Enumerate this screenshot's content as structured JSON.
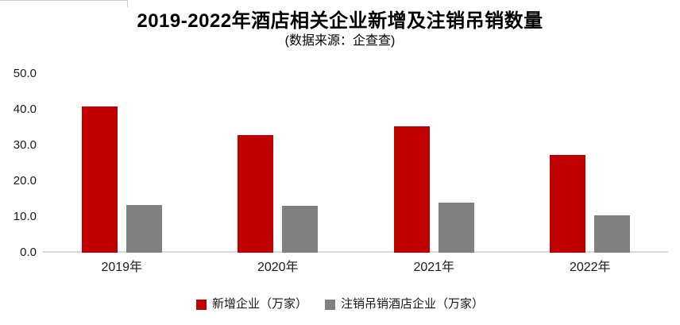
{
  "chart": {
    "title": "2019-2022年酒店相关企业新增及注销吊销数量",
    "subtitle": "(数据来源：企查查)"
  },
  "chart_data": {
    "type": "bar",
    "title": "2019-2022年酒店相关企业新增及注销吊销数量",
    "subtitle": "(数据来源：企查查)",
    "categories": [
      "2019年",
      "2020年",
      "2021年",
      "2022年"
    ],
    "series": [
      {
        "name": "新增企业（万家）",
        "color": "#c00000",
        "values": [
          41.0,
          32.8,
          35.4,
          27.4
        ]
      },
      {
        "name": "注销吊销酒店企业（万家）",
        "color": "#808080",
        "values": [
          13.3,
          13.1,
          14.0,
          10.4
        ]
      }
    ],
    "ylim": [
      0,
      50
    ],
    "yticks": [
      "50.0",
      "40.0",
      "30.0",
      "20.0",
      "10.0",
      "0.0"
    ],
    "ytick_values": [
      50,
      40,
      30,
      20,
      10,
      0
    ],
    "grid": false,
    "legend_position": "bottom",
    "axis_line_color": "#d9d9d9",
    "background_color": "#ffffff"
  }
}
